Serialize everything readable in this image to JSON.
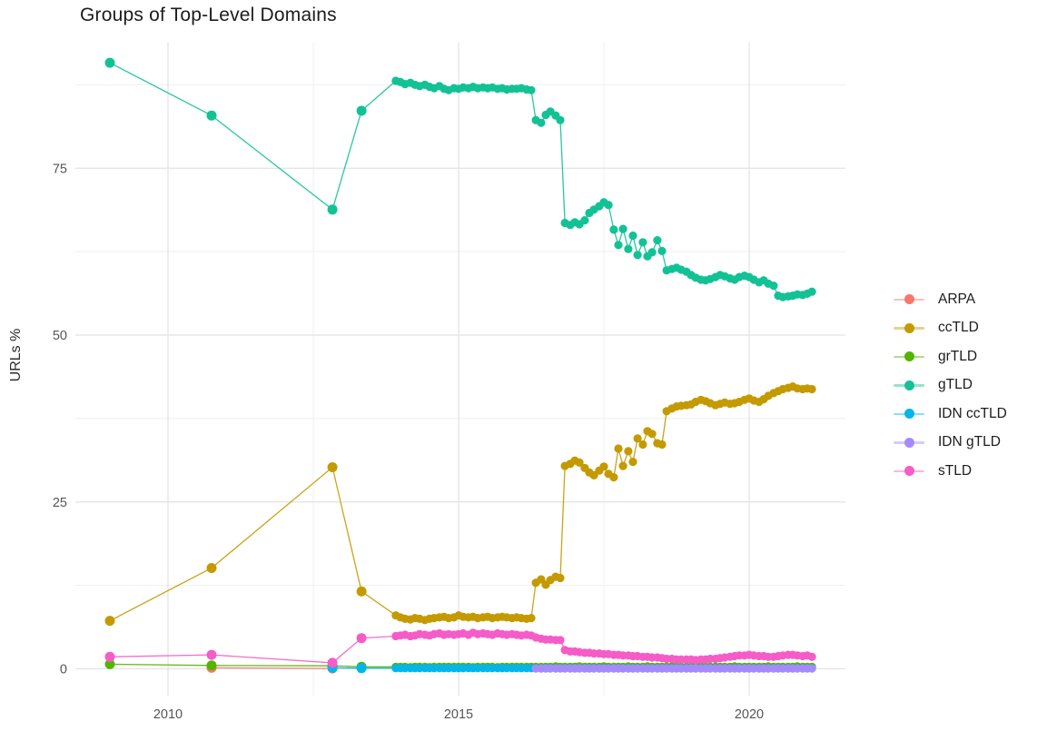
{
  "title": "Groups of Top-Level Domains",
  "chart_data": {
    "type": "line",
    "title": "Groups of Top-Level Domains",
    "xlabel": "",
    "ylabel": "URLs %",
    "grid": "on",
    "legend_position": "right",
    "x_axis": {
      "ticks": [
        2010,
        2015,
        2020
      ],
      "tick_labels": [
        "2010",
        "2015",
        "2020"
      ],
      "minor_ticks": [
        2012.5,
        2017.5
      ],
      "range": [
        2008.4,
        2021.7
      ]
    },
    "y_axis": {
      "ticks": [
        0,
        25,
        50,
        75
      ],
      "tick_labels": [
        "0",
        "25",
        "50",
        "75"
      ],
      "minor_ticks": [
        12.5,
        37.5,
        62.5,
        87.5
      ],
      "range": [
        -4.5,
        94.5
      ]
    },
    "x_dense": [
      2013.92,
      2014.0,
      2014.08,
      2014.17,
      2014.25,
      2014.33,
      2014.42,
      2014.5,
      2014.58,
      2014.67,
      2014.75,
      2014.83,
      2014.92,
      2015.0,
      2015.08,
      2015.17,
      2015.25,
      2015.33,
      2015.42,
      2015.5,
      2015.58,
      2015.67,
      2015.75,
      2015.83,
      2015.92,
      2016.0,
      2016.08,
      2016.17,
      2016.25,
      2016.33,
      2016.42,
      2016.5,
      2016.58,
      2016.67,
      2016.75,
      2016.83,
      2016.92,
      2017.0,
      2017.08,
      2017.17,
      2017.25,
      2017.33,
      2017.42,
      2017.5,
      2017.58,
      2017.67,
      2017.75,
      2017.83,
      2017.92,
      2018.0,
      2018.08,
      2018.17,
      2018.25,
      2018.33,
      2018.42,
      2018.5,
      2018.58,
      2018.67,
      2018.75,
      2018.83,
      2018.92,
      2019.0,
      2019.08,
      2019.17,
      2019.25,
      2019.33,
      2019.42,
      2019.5,
      2019.58,
      2019.67,
      2019.75,
      2019.83,
      2019.92,
      2020.0,
      2020.08,
      2020.17,
      2020.25,
      2020.33,
      2020.42,
      2020.5,
      2020.58,
      2020.67,
      2020.75,
      2020.83,
      2020.92,
      2021.0,
      2021.08
    ],
    "series": [
      {
        "name": "ARPA",
        "color": "#F8766D",
        "points": [
          [
            2010.75,
            0.15
          ],
          [
            2012.83,
            0.05
          ]
        ]
      },
      {
        "name": "ccTLD",
        "color": "#C49A00",
        "pre": [
          [
            2009.0,
            7.2
          ],
          [
            2010.75,
            15.1
          ],
          [
            2012.83,
            30.2
          ],
          [
            2013.33,
            11.6
          ]
        ],
        "values": [
          8.0,
          7.7,
          7.5,
          7.4,
          7.6,
          7.5,
          7.3,
          7.5,
          7.6,
          7.7,
          7.8,
          7.6,
          7.7,
          8.0,
          7.8,
          7.7,
          7.8,
          7.6,
          7.7,
          7.8,
          7.6,
          7.7,
          7.8,
          7.7,
          7.6,
          7.7,
          7.6,
          7.5,
          7.6,
          12.9,
          13.4,
          12.6,
          13.3,
          13.8,
          13.6,
          30.4,
          30.7,
          31.2,
          30.9,
          30.1,
          29.4,
          29.0,
          29.7,
          30.3,
          29.2,
          28.7,
          33.0,
          30.4,
          32.6,
          31.0,
          34.5,
          33.6,
          35.6,
          35.2,
          33.8,
          33.6,
          38.6,
          39.0,
          39.3,
          39.4,
          39.5,
          39.6,
          40.0,
          40.3,
          40.1,
          39.8,
          39.5,
          39.7,
          39.9,
          39.7,
          39.8,
          40.0,
          40.3,
          40.5,
          40.2,
          40.0,
          40.4,
          40.9,
          41.3,
          41.6,
          41.9,
          42.1,
          42.3,
          42.0,
          41.9,
          42.0,
          41.9
        ]
      },
      {
        "name": "grTLD",
        "color": "#53B400",
        "pre": [
          [
            2009.0,
            0.7
          ],
          [
            2010.75,
            0.5
          ],
          [
            2012.83,
            0.45
          ],
          [
            2013.33,
            0.3
          ]
        ],
        "values": [
          0.3,
          0.3,
          0.3,
          0.25,
          0.3,
          0.3,
          0.3,
          0.25,
          0.3,
          0.3,
          0.3,
          0.3,
          0.3,
          0.3,
          0.3,
          0.3,
          0.25,
          0.3,
          0.3,
          0.3,
          0.3,
          0.25,
          0.3,
          0.3,
          0.3,
          0.3,
          0.3,
          0.3,
          0.3,
          0.3,
          0.3,
          0.3,
          0.3,
          0.35,
          0.3,
          0.3,
          0.3,
          0.3,
          0.35,
          0.3,
          0.3,
          0.3,
          0.3,
          0.35,
          0.3,
          0.3,
          0.3,
          0.3,
          0.35,
          0.3,
          0.3,
          0.3,
          0.35,
          0.3,
          0.3,
          0.3,
          0.3,
          0.35,
          0.3,
          0.3,
          0.3,
          0.3,
          0.3,
          0.35,
          0.3,
          0.3,
          0.3,
          0.3,
          0.3,
          0.3,
          0.35,
          0.3,
          0.3,
          0.3,
          0.3,
          0.3,
          0.3,
          0.35,
          0.3,
          0.3,
          0.3,
          0.3,
          0.3,
          0.35,
          0.3,
          0.3,
          0.3
        ]
      },
      {
        "name": "gTLD",
        "color": "#12C295",
        "pre": [
          [
            2009.0,
            90.8
          ],
          [
            2010.75,
            82.9
          ],
          [
            2012.83,
            68.8
          ],
          [
            2013.33,
            83.6
          ]
        ],
        "values": [
          88.1,
          87.9,
          87.6,
          87.8,
          87.5,
          87.3,
          87.5,
          87.2,
          87.0,
          87.3,
          86.9,
          86.7,
          87.0,
          86.9,
          87.1,
          87.0,
          87.2,
          87.0,
          87.1,
          87.0,
          87.1,
          86.9,
          87.0,
          86.8,
          86.9,
          86.9,
          87.0,
          86.8,
          86.7,
          82.2,
          81.8,
          83.0,
          83.5,
          82.9,
          82.2,
          66.8,
          66.5,
          66.9,
          66.6,
          67.2,
          68.3,
          68.8,
          69.3,
          69.9,
          69.5,
          65.8,
          63.5,
          65.9,
          62.9,
          64.9,
          62.0,
          63.9,
          61.8,
          62.4,
          64.2,
          62.6,
          59.7,
          59.9,
          60.1,
          59.8,
          59.5,
          59.0,
          58.6,
          58.3,
          58.2,
          58.4,
          58.7,
          59.0,
          58.8,
          58.5,
          58.3,
          58.7,
          58.9,
          58.7,
          58.3,
          57.9,
          58.2,
          57.7,
          57.4,
          55.9,
          55.7,
          55.8,
          55.9,
          56.1,
          56.0,
          56.2,
          56.5
        ]
      },
      {
        "name": "IDN ccTLD",
        "color": "#00B6EB",
        "pre": [
          [
            2012.83,
            0.15
          ],
          [
            2013.33,
            0.1
          ]
        ],
        "values": [
          0.1,
          0.1,
          0.1,
          0.1,
          0.1,
          0.1,
          0.1,
          0.1,
          0.1,
          0.1,
          0.1,
          0.1,
          0.1,
          0.1,
          0.1,
          0.1,
          0.1,
          0.1,
          0.1,
          0.1,
          0.1,
          0.1,
          0.1,
          0.1,
          0.1,
          0.1,
          0.1,
          0.1,
          0.1,
          0.1,
          0.1,
          0.1,
          0.1,
          0.1,
          0.1,
          0.1,
          0.1,
          0.1,
          0.1,
          0.1,
          0.1,
          0.1,
          0.1,
          0.1,
          0.1,
          0.1,
          0.1,
          0.1,
          0.1,
          0.1,
          0.1,
          0.1,
          0.1,
          0.1,
          0.1,
          0.1,
          0.1,
          0.1,
          0.1,
          0.1,
          0.1,
          0.1,
          0.1,
          0.1,
          0.1,
          0.1,
          0.1,
          0.1,
          0.1,
          0.1,
          0.1,
          0.1,
          0.1,
          0.1,
          0.1,
          0.1,
          0.1,
          0.1,
          0.1,
          0.1,
          0.1,
          0.1,
          0.1,
          0.1,
          0.1,
          0.1,
          0.1
        ]
      },
      {
        "name": "IDN gTLD",
        "color": "#A58AFF",
        "start_index": 29,
        "values": [
          0.05,
          0.05,
          0.05,
          0.05,
          0.05,
          0.05,
          0.05,
          0.05,
          0.05,
          0.05,
          0.05,
          0.05,
          0.05,
          0.05,
          0.05,
          0.05,
          0.05,
          0.05,
          0.05,
          0.05,
          0.05,
          0.05,
          0.05,
          0.05,
          0.05,
          0.05,
          0.05,
          0.05,
          0.05,
          0.05,
          0.05,
          0.05,
          0.05,
          0.05,
          0.05,
          0.05,
          0.05,
          0.05,
          0.05,
          0.05,
          0.05,
          0.05,
          0.05,
          0.05,
          0.05,
          0.05,
          0.05,
          0.05,
          0.05,
          0.05,
          0.05,
          0.05,
          0.05,
          0.05,
          0.05,
          0.05,
          0.05,
          0.05
        ]
      },
      {
        "name": "sTLD",
        "color": "#F65CC8",
        "pre": [
          [
            2009.0,
            1.8
          ],
          [
            2010.75,
            2.1
          ],
          [
            2012.83,
            0.9
          ],
          [
            2013.33,
            4.6
          ]
        ],
        "values": [
          4.9,
          5.0,
          5.1,
          4.9,
          5.0,
          5.2,
          5.1,
          5.0,
          5.2,
          5.3,
          5.1,
          5.2,
          5.1,
          5.2,
          5.3,
          5.1,
          5.4,
          5.2,
          5.3,
          5.2,
          5.1,
          5.3,
          5.2,
          5.1,
          5.2,
          5.1,
          5.0,
          5.1,
          5.0,
          4.7,
          4.5,
          4.4,
          4.4,
          4.3,
          4.3,
          2.8,
          2.6,
          2.6,
          2.5,
          2.4,
          2.4,
          2.3,
          2.3,
          2.2,
          2.2,
          2.1,
          2.1,
          2.0,
          2.0,
          1.9,
          1.9,
          1.8,
          1.8,
          1.7,
          1.7,
          1.6,
          1.5,
          1.5,
          1.4,
          1.4,
          1.4,
          1.4,
          1.3,
          1.4,
          1.4,
          1.5,
          1.5,
          1.6,
          1.7,
          1.8,
          1.9,
          2.0,
          2.0,
          2.1,
          2.0,
          1.9,
          1.9,
          1.8,
          1.8,
          1.9,
          2.0,
          2.1,
          2.1,
          2.0,
          1.9,
          2.0,
          1.8
        ]
      }
    ]
  }
}
